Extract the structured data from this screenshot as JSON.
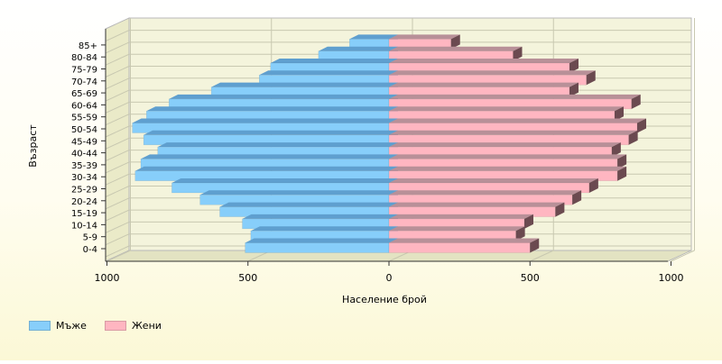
{
  "chart_data": {
    "type": "bar",
    "orientation": "horizontal",
    "subtype": "population-pyramid",
    "categories": [
      "0-4",
      "5-9",
      "10-14",
      "15-19",
      "20-24",
      "25-29",
      "30-34",
      "35-39",
      "40-44",
      "45-49",
      "50-54",
      "55-59",
      "60-64",
      "65-69",
      "70-74",
      "75-79",
      "80-84",
      "85+"
    ],
    "series": [
      {
        "name": "Мъже",
        "values": [
          510,
          490,
          520,
          600,
          670,
          770,
          900,
          880,
          820,
          870,
          910,
          860,
          780,
          630,
          460,
          420,
          250,
          140
        ],
        "color": "#87cefa"
      },
      {
        "name": "Жени",
        "values": [
          500,
          450,
          480,
          590,
          650,
          710,
          810,
          810,
          790,
          850,
          880,
          800,
          860,
          640,
          700,
          640,
          440,
          220
        ],
        "color": "#ffb6c1"
      }
    ],
    "x_tick_labels": [
      "1000",
      "500",
      "0",
      "500",
      "1000"
    ],
    "xlabel": "Население брой",
    "ylabel": "Възраст",
    "xlim": [
      -1000,
      1000
    ],
    "grid": true,
    "legend_position": "bottom-left"
  }
}
